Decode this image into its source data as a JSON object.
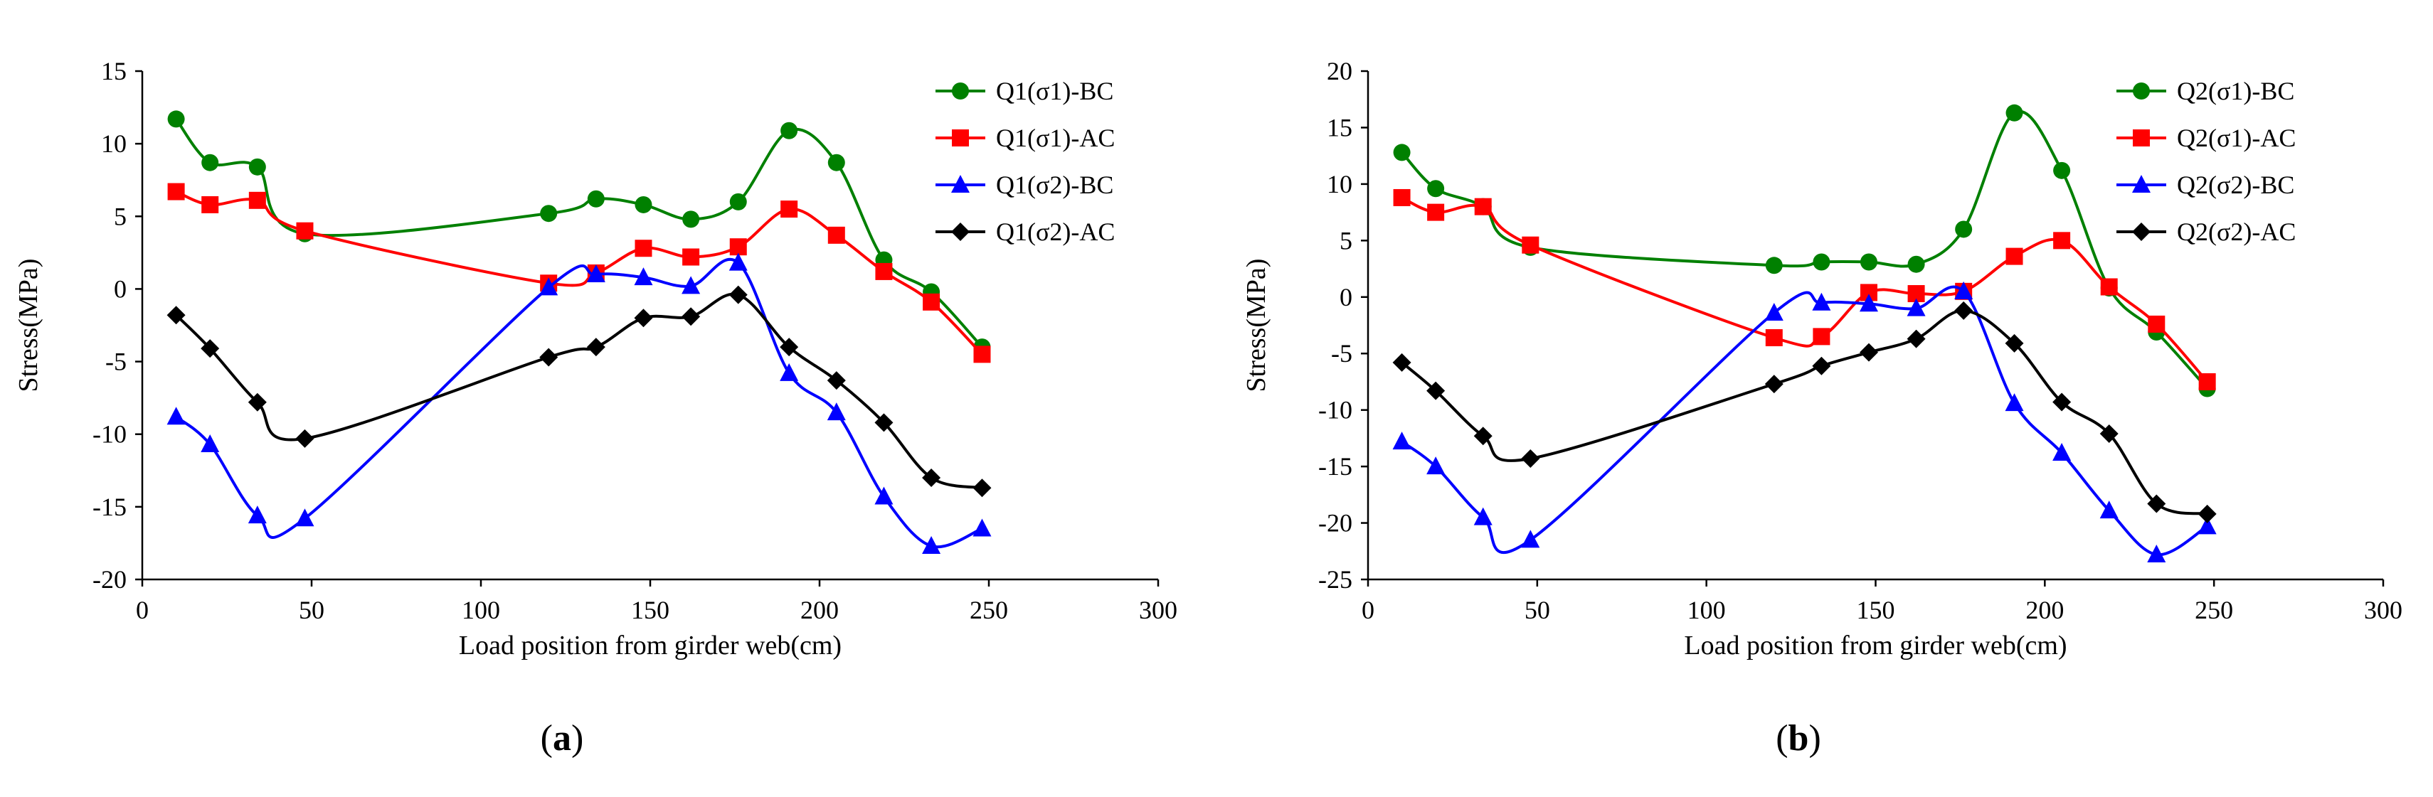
{
  "chart_data": [
    {
      "type": "line",
      "panel_label": "a",
      "xlabel": "Load position from girder web(cm)",
      "ylabel": "Stress(MPa)",
      "xlim": [
        0,
        300
      ],
      "ylim": [
        -20,
        15
      ],
      "xticks": [
        0,
        50,
        100,
        150,
        200,
        250,
        300
      ],
      "yticks": [
        -20,
        -15,
        -10,
        -5,
        0,
        5,
        10,
        15
      ],
      "legend_position": "top-right",
      "series": [
        {
          "name": "Q1(σ1)-BC",
          "color": "#008000",
          "marker": "circle",
          "x": [
            10,
            20,
            34,
            48,
            120,
            134,
            148,
            162,
            176,
            191,
            205,
            219,
            233,
            248
          ],
          "y": [
            11.7,
            8.7,
            8.4,
            3.8,
            5.2,
            6.2,
            5.8,
            4.8,
            6.0,
            10.9,
            8.7,
            2.0,
            -0.2,
            -4.0
          ]
        },
        {
          "name": "Q1(σ1)-AC",
          "color": "#ff0000",
          "marker": "square",
          "x": [
            10,
            20,
            34,
            48,
            120,
            134,
            148,
            162,
            176,
            191,
            205,
            219,
            233,
            248
          ],
          "y": [
            6.7,
            5.8,
            6.1,
            4.0,
            0.4,
            1.1,
            2.8,
            2.2,
            2.9,
            5.5,
            3.7,
            1.2,
            -0.9,
            -4.5
          ]
        },
        {
          "name": "Q1(σ2)-BC",
          "color": "#0000ff",
          "marker": "triangle",
          "x": [
            10,
            20,
            34,
            48,
            120,
            134,
            148,
            162,
            176,
            191,
            205,
            219,
            233,
            248
          ],
          "y": [
            -8.8,
            -10.7,
            -15.6,
            -15.8,
            0.1,
            1.0,
            0.8,
            0.2,
            1.8,
            -5.8,
            -8.5,
            -14.3,
            -17.7,
            -16.5
          ]
        },
        {
          "name": "Q1(σ2)-AC",
          "color": "#000000",
          "marker": "diamond",
          "x": [
            10,
            20,
            34,
            48,
            120,
            134,
            148,
            162,
            176,
            191,
            205,
            219,
            233,
            248
          ],
          "y": [
            -1.8,
            -4.1,
            -7.8,
            -10.3,
            -4.7,
            -4.0,
            -2.0,
            -1.9,
            -0.4,
            -4.0,
            -6.3,
            -9.2,
            -13.0,
            -13.7
          ]
        }
      ]
    },
    {
      "type": "line",
      "panel_label": "b",
      "xlabel": "Load position from girder web(cm)",
      "ylabel": "Stress(MPa)",
      "xlim": [
        0,
        300
      ],
      "ylim": [
        -25,
        20
      ],
      "xticks": [
        0,
        50,
        100,
        150,
        200,
        250,
        300
      ],
      "yticks": [
        -25,
        -20,
        -15,
        -10,
        -5,
        0,
        5,
        10,
        15,
        20
      ],
      "legend_position": "top-right",
      "series": [
        {
          "name": "Q2(σ1)-BC",
          "color": "#008000",
          "marker": "circle",
          "x": [
            10,
            20,
            34,
            48,
            120,
            134,
            148,
            162,
            176,
            191,
            205,
            219,
            233,
            248
          ],
          "y": [
            12.8,
            9.6,
            8.0,
            4.4,
            2.8,
            3.1,
            3.1,
            2.9,
            6.0,
            16.3,
            11.2,
            0.8,
            -3.1,
            -8.1
          ]
        },
        {
          "name": "Q2(σ1)-AC",
          "color": "#ff0000",
          "marker": "square",
          "x": [
            10,
            20,
            34,
            48,
            120,
            134,
            148,
            162,
            176,
            191,
            205,
            219,
            233,
            248
          ],
          "y": [
            8.8,
            7.5,
            8.0,
            4.6,
            -3.6,
            -3.5,
            0.4,
            0.3,
            0.5,
            3.6,
            5.0,
            0.9,
            -2.4,
            -7.5
          ]
        },
        {
          "name": "Q2(σ2)-BC",
          "color": "#0000ff",
          "marker": "triangle",
          "x": [
            10,
            20,
            34,
            48,
            120,
            134,
            148,
            162,
            176,
            191,
            205,
            219,
            233,
            248
          ],
          "y": [
            -12.8,
            -15.0,
            -19.5,
            -21.5,
            -1.4,
            -0.5,
            -0.6,
            -1.0,
            0.5,
            -9.4,
            -13.8,
            -18.9,
            -22.8,
            -20.3
          ]
        },
        {
          "name": "Q2(σ2)-AC",
          "color": "#000000",
          "marker": "diamond",
          "x": [
            10,
            20,
            34,
            48,
            120,
            134,
            148,
            162,
            176,
            191,
            205,
            219,
            233,
            248
          ],
          "y": [
            -5.8,
            -8.3,
            -12.3,
            -14.3,
            -7.7,
            -6.1,
            -4.9,
            -3.7,
            -1.2,
            -4.1,
            -9.3,
            -12.1,
            -18.3,
            -19.2
          ]
        }
      ]
    }
  ]
}
